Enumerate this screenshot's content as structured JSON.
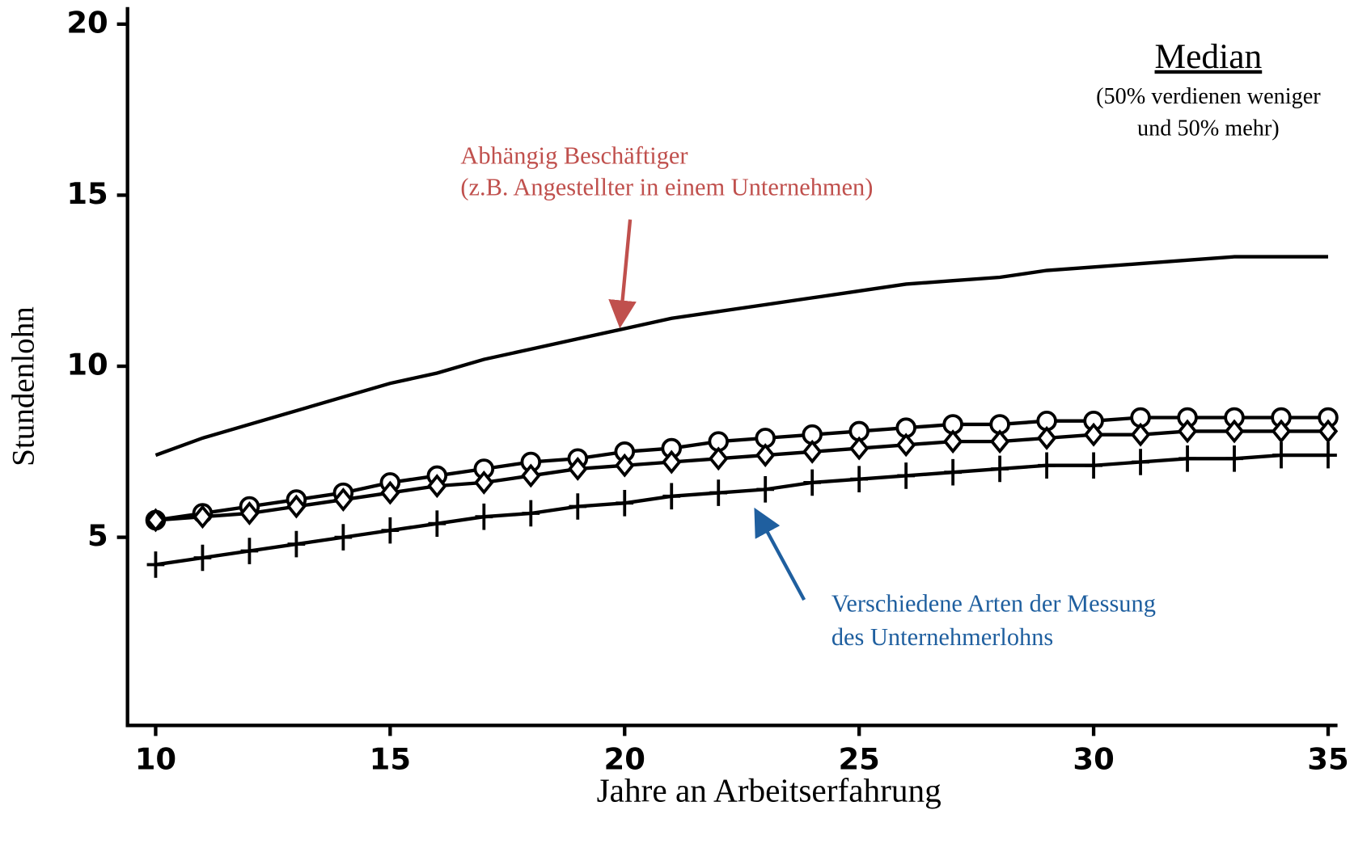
{
  "chart_data": {
    "type": "line",
    "x_label": "Jahre an Arbeitserfahrung",
    "y_label": "Stundenlohn",
    "x": [
      10,
      11,
      12,
      13,
      14,
      15,
      16,
      17,
      18,
      19,
      20,
      21,
      22,
      23,
      24,
      25,
      26,
      27,
      28,
      29,
      30,
      31,
      32,
      33,
      34,
      35
    ],
    "series": [
      {
        "color": "#000000",
        "marker": "none",
        "values": [
          7.4,
          7.9,
          8.3,
          8.7,
          9.1,
          9.5,
          9.8,
          10.2,
          10.5,
          10.8,
          11.1,
          11.4,
          11.6,
          11.8,
          12.0,
          12.2,
          12.4,
          12.5,
          12.6,
          12.8,
          12.9,
          13.0,
          13.1,
          13.2,
          13.2,
          13.2
        ]
      },
      {
        "color": "#000000",
        "marker": "circle",
        "values": [
          5.5,
          5.7,
          5.9,
          6.1,
          6.3,
          6.6,
          6.8,
          7.0,
          7.2,
          7.3,
          7.5,
          7.6,
          7.8,
          7.9,
          8.0,
          8.1,
          8.2,
          8.3,
          8.3,
          8.4,
          8.4,
          8.5,
          8.5,
          8.5,
          8.5,
          8.5
        ]
      },
      {
        "color": "#000000",
        "marker": "diamond",
        "values": [
          5.5,
          5.6,
          5.7,
          5.9,
          6.1,
          6.3,
          6.5,
          6.6,
          6.8,
          7.0,
          7.1,
          7.2,
          7.3,
          7.4,
          7.5,
          7.6,
          7.7,
          7.8,
          7.8,
          7.9,
          8.0,
          8.0,
          8.1,
          8.1,
          8.1,
          8.1
        ]
      },
      {
        "color": "#000000",
        "marker": "plus",
        "values": [
          4.2,
          4.4,
          4.6,
          4.8,
          5.0,
          5.2,
          5.4,
          5.6,
          5.7,
          5.9,
          6.0,
          6.2,
          6.3,
          6.4,
          6.6,
          6.7,
          6.8,
          6.9,
          7.0,
          7.1,
          7.1,
          7.2,
          7.3,
          7.3,
          7.4,
          7.4
        ]
      }
    ],
    "xlim": [
      9.4,
      35.2
    ],
    "xticks": [
      10,
      15,
      20,
      25,
      30,
      35
    ],
    "ylim": [
      -0.5,
      20.5
    ],
    "yticks": [
      5,
      10,
      15,
      20
    ],
    "annotations": [
      {
        "color": "#c0504d",
        "lines": [
          "Abhängig Beschäftiger",
          "(z.B. Angestellter in einem Unternehmen)"
        ]
      },
      {
        "color": "#1f5f9f",
        "lines": [
          "Verschiedene Arten der Messung",
          "des Unternehmerlohns"
        ]
      },
      {
        "color": "#000000",
        "lines": [
          "Median",
          "(50% verdienen weniger",
          "und 50% mehr)"
        ]
      }
    ]
  }
}
